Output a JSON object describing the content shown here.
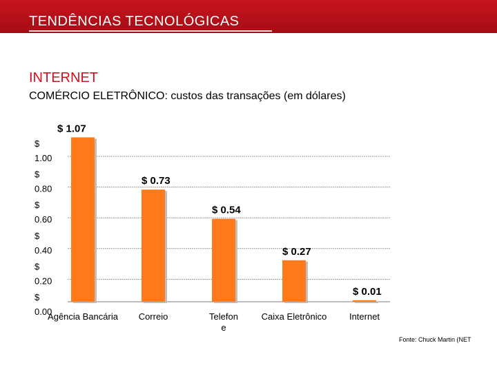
{
  "header": {
    "title": "TENDÊNCIAS TECNOLÓGICAS",
    "heading": "INTERNET",
    "subheading": "COMÉRCIO ELETRÔNICO: custos das transações (em dólares)"
  },
  "source": "Fonte: Chuck Martin (NET",
  "colors": {
    "banner": "#c0121b",
    "bar": "#ff7a1a",
    "heading": "#d0101a"
  },
  "chart_data": {
    "type": "bar",
    "categories": [
      "Agência Bancária",
      "Correio",
      "Telefone",
      "Caixa Eletrônico",
      "Internet"
    ],
    "x_tick_labels": [
      "Agência Bancária",
      "Correio",
      "Telefon\ne",
      "Caixa Eletrônico",
      "Internet"
    ],
    "values": [
      1.07,
      0.73,
      0.54,
      0.27,
      0.01
    ],
    "data_labels": [
      "$ 1.07",
      "$ 0.73",
      "$ 0.54",
      "$ 0.27",
      "$ 0.01"
    ],
    "y_ticks": [
      0.0,
      0.2,
      0.4,
      0.6,
      0.8,
      1.0
    ],
    "y_tick_labels": [
      "$ 0.00",
      "$ 0.20",
      "$ 0.40",
      "$ 0.60",
      "$ 0.80",
      "$ 1.00"
    ],
    "ylim": [
      0,
      1.0
    ],
    "grid": true,
    "legend": "none"
  }
}
